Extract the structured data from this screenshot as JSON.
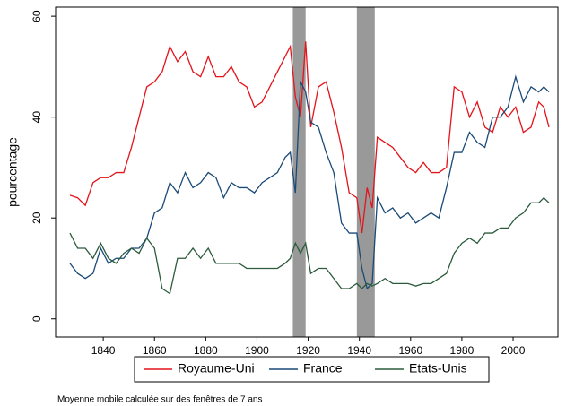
{
  "chart_data": {
    "type": "line",
    "ylabel": "pourcentage",
    "note": "Moyenne mobile calculée sur des fenêtres de 7 ans",
    "x": [
      1827,
      1830,
      1833,
      1836,
      1839,
      1842,
      1845,
      1848,
      1851,
      1854,
      1857,
      1860,
      1863,
      1866,
      1869,
      1872,
      1875,
      1878,
      1881,
      1884,
      1887,
      1890,
      1893,
      1896,
      1899,
      1902,
      1905,
      1908,
      1911,
      1913,
      1915,
      1917,
      1919,
      1921,
      1924,
      1927,
      1930,
      1933,
      1936,
      1939,
      1941,
      1943,
      1945,
      1947,
      1950,
      1953,
      1956,
      1959,
      1962,
      1965,
      1968,
      1971,
      1974,
      1977,
      1980,
      1983,
      1986,
      1989,
      1992,
      1995,
      1998,
      2001,
      2004,
      2007,
      2010,
      2012,
      2014
    ],
    "series": [
      {
        "name": "Royaume-Uni",
        "color": "#e3141b",
        "values": [
          24.5,
          24,
          22.5,
          27,
          28,
          28,
          29,
          29,
          34,
          40,
          46,
          47,
          49,
          54,
          51,
          53,
          49,
          48,
          52,
          48,
          48,
          50,
          47,
          46,
          42,
          43,
          46,
          49,
          52,
          54,
          44,
          40,
          55,
          38,
          46,
          47,
          41,
          34,
          25,
          24,
          17,
          26,
          22,
          36,
          35,
          34,
          32,
          30,
          29,
          31,
          29,
          29,
          30,
          46,
          45,
          40,
          43,
          38,
          37,
          42,
          40,
          42,
          37,
          38,
          43,
          42,
          38
        ]
      },
      {
        "name": "France",
        "color": "#1a4a78",
        "values": [
          11,
          9,
          8,
          9,
          14,
          11,
          12,
          12,
          14,
          14,
          16,
          21,
          22,
          27,
          25,
          29,
          26,
          27,
          29,
          28,
          24,
          27,
          26,
          26,
          25,
          27,
          28,
          29,
          32,
          33,
          25,
          47,
          45,
          39,
          38,
          33,
          29,
          19,
          17,
          17,
          10,
          6,
          7,
          24,
          21,
          22,
          20,
          21,
          19,
          20,
          21,
          20,
          26,
          33,
          33,
          37,
          35,
          34,
          40,
          40,
          42,
          48,
          43,
          46,
          45,
          46,
          45
        ]
      },
      {
        "name": "Etats-Unis",
        "color": "#2b5b3c",
        "values": [
          17,
          14,
          14,
          12,
          15,
          12,
          11,
          13,
          14,
          13,
          16,
          14,
          6,
          5,
          12,
          12,
          14,
          12,
          14,
          11,
          11,
          11,
          11,
          10,
          10,
          10,
          10,
          10,
          11,
          12,
          15,
          13,
          15,
          9,
          10,
          10,
          8,
          6,
          6,
          7,
          6,
          7,
          6.5,
          7,
          8,
          7,
          7,
          7,
          6.5,
          7,
          7,
          8,
          9,
          13,
          15,
          16,
          15,
          17,
          17,
          18,
          18,
          20,
          21,
          23,
          23,
          24,
          23
        ]
      }
    ],
    "xlim": [
      1821.4,
      2017.5
    ],
    "xticks": [
      1840,
      1860,
      1880,
      1900,
      1920,
      1940,
      1960,
      1980,
      2000
    ],
    "ylim": [
      -3.6,
      61.8
    ],
    "yticks": [
      0,
      20,
      40,
      60
    ],
    "shaded_ranges": [
      [
        1914,
        1919
      ],
      [
        1939,
        1946
      ]
    ],
    "shade_color": "#999999",
    "legend": "bottom"
  }
}
